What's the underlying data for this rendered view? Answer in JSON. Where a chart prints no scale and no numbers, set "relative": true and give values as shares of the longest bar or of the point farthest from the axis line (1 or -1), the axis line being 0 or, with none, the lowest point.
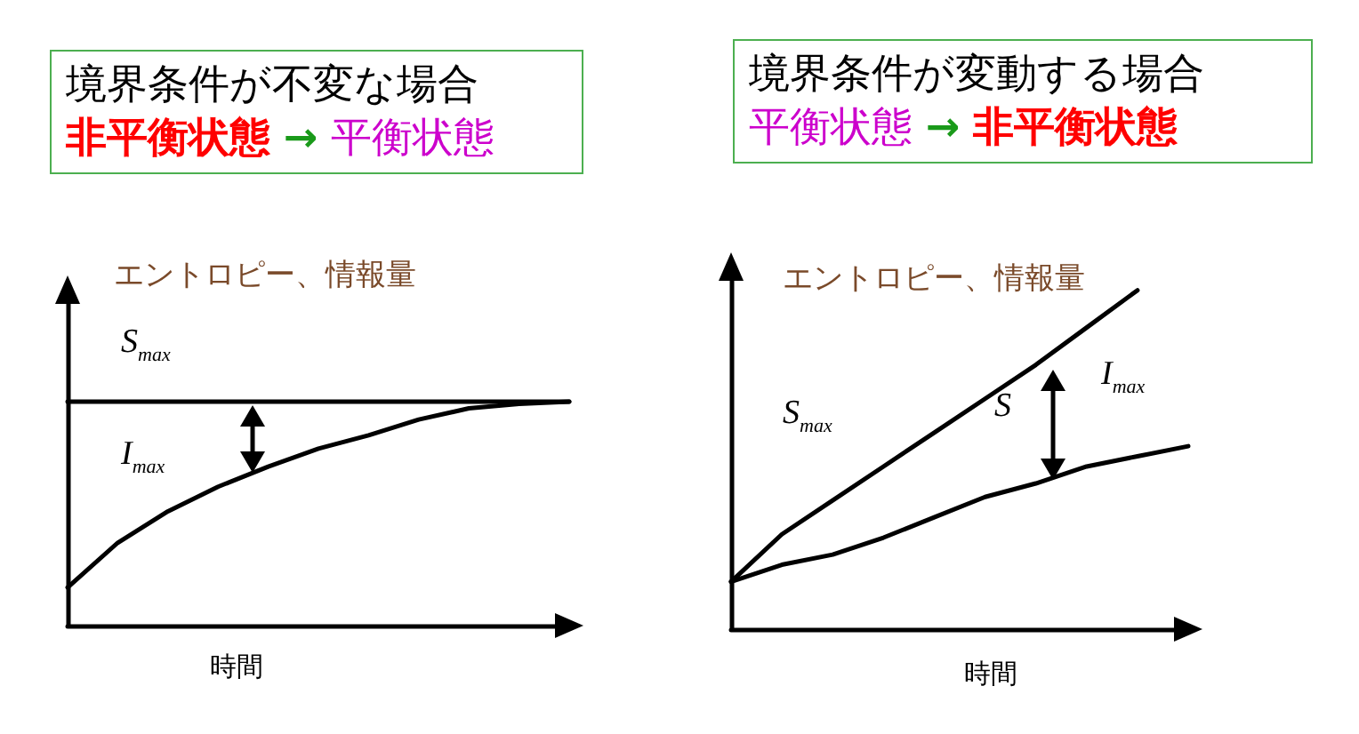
{
  "chart_data": [
    {
      "type": "line",
      "title": "境界条件が不変な場合",
      "subtitle": "非平衡状態 → 平衡状態",
      "ylabel": "エントロピー、情報量",
      "xlabel": "時間",
      "relative": true,
      "categories": [
        null,
        null,
        null,
        null,
        null,
        null,
        null,
        null,
        null,
        null,
        null
      ],
      "series": [
        {
          "color": "#000000",
          "values": [
            1,
            1,
            1,
            1,
            1,
            1,
            1,
            1,
            1,
            1,
            1
          ]
        },
        {
          "color": "#000000",
          "values": [
            0.17,
            0.37,
            0.51,
            0.62,
            0.71,
            0.79,
            0.85,
            0.92,
            0.97,
            0.99,
            1
          ]
        }
      ],
      "annotations": [
        "S$_{max}$",
        "I$_{max}$"
      ]
    },
    {
      "type": "line",
      "title": "境界条件が変動する場合",
      "subtitle": "平衡状態 → 非平衡状態",
      "ylabel": "エントロピー、情報量",
      "xlabel": "時間",
      "relative": true,
      "categories": [
        null,
        null,
        null,
        null,
        null,
        null,
        null,
        null,
        null,
        null
      ],
      "series": [
        {
          "color": "#000000",
          "values": [
            0.14,
            0.28,
            0.38,
            0.48,
            0.58,
            0.68,
            0.78,
            0.89,
            1,
            null
          ]
        },
        {
          "color": "#000000",
          "values": [
            0.14,
            0.19,
            0.22,
            0.27,
            0.33,
            0.39,
            0.43,
            0.48,
            0.51,
            0.54
          ]
        }
      ],
      "annotations": [
        "S$_{max}$",
        "S",
        "I$_{max}$"
      ]
    }
  ]
}
